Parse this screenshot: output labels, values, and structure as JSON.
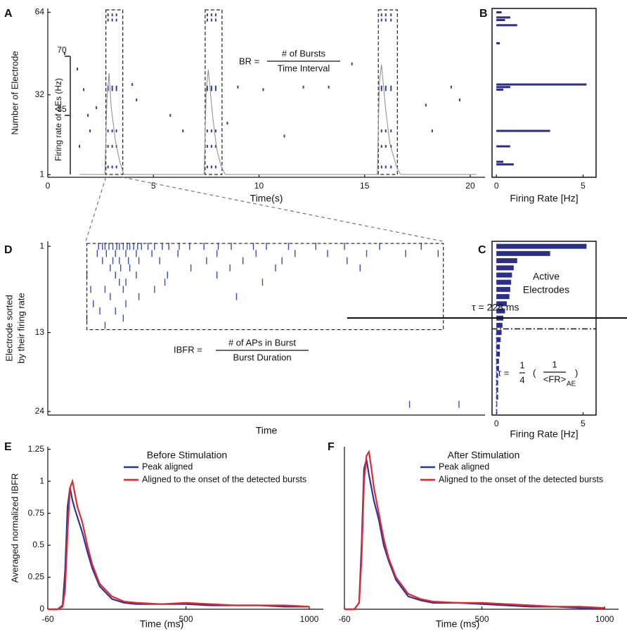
{
  "chart_data": [
    {
      "type": "raster",
      "panel": "A",
      "xlabel": "Time(s)",
      "ylabel": "Number of Electrode",
      "xlim": [
        0,
        20.7
      ],
      "ylim": [
        0,
        65.5
      ],
      "xticks": [
        0,
        5,
        10,
        15,
        20
      ],
      "yticks": [
        1,
        32,
        64
      ],
      "color": "#2e3f9e",
      "x": [
        2.85,
        2.85,
        2.85,
        2.85,
        2.85,
        2.85,
        2.85,
        3.05,
        3.05,
        3.05,
        3.05,
        3.05,
        3.05,
        3.05,
        3.25,
        3.25,
        3.25,
        3.25,
        3.25,
        3.25,
        3.25,
        7.55,
        7.55,
        7.55,
        7.55,
        7.55,
        7.55,
        7.55,
        7.75,
        7.75,
        7.75,
        7.75,
        7.75,
        7.75,
        7.75,
        7.95,
        7.95,
        7.95,
        7.95,
        7.95,
        7.95,
        7.95,
        15.8,
        15.8,
        15.8,
        15.8,
        15.8,
        15.8,
        15.8,
        16,
        16,
        16,
        16,
        16,
        16,
        16,
        16.25,
        16.25,
        16.25,
        16.25,
        16.25,
        16.25,
        16.25,
        1.7,
        2.0,
        2.3,
        1.9,
        1.4,
        4.0,
        4.2,
        6.4,
        9.0,
        10.2,
        12.1,
        13.3,
        11.2,
        14.4,
        19.1,
        19.5,
        18.2,
        17.9,
        5.8,
        8.5,
        0.8,
        1.5
      ],
      "y": [
        63,
        61,
        35,
        34,
        18,
        12,
        4,
        63,
        61,
        35,
        34,
        18,
        12,
        4,
        63,
        61,
        35,
        34,
        18,
        12,
        4,
        63,
        61,
        35,
        34,
        18,
        12,
        4,
        63,
        61,
        35,
        34,
        18,
        12,
        4,
        63,
        61,
        35,
        34,
        18,
        12,
        4,
        63,
        61,
        35,
        34,
        18,
        12,
        4,
        63,
        61,
        35,
        34,
        18,
        12,
        4,
        63,
        61,
        35,
        34,
        18,
        12,
        4,
        34,
        18,
        27,
        24,
        42,
        36,
        30,
        18,
        35,
        34,
        35,
        35,
        16,
        44,
        35,
        30,
        18,
        28,
        24,
        21,
        48,
        12
      ],
      "burst_windows": [
        [
          2.75,
          3.55
        ],
        [
          7.45,
          8.25
        ],
        [
          15.65,
          16.55
        ]
      ],
      "inset": {
        "ylabel": "Firing rate of AEs (Hz)",
        "ylim": [
          0,
          70
        ],
        "yticks": [
          35,
          70
        ],
        "color": "#8a8a8a",
        "x": [
          1.5,
          2.7,
          2.8,
          2.9,
          3.0,
          3.2,
          3.4,
          3.6,
          7.4,
          7.5,
          7.6,
          7.8,
          8.0,
          8.2,
          8.4,
          15.6,
          15.7,
          15.8,
          16.0,
          16.2,
          16.5,
          16.7,
          20.3
        ],
        "y": [
          0,
          0,
          45,
          60,
          40,
          20,
          8,
          0,
          0,
          50,
          62,
          35,
          15,
          5,
          0,
          0,
          55,
          65,
          38,
          18,
          5,
          0,
          0
        ]
      },
      "formula": {
        "lhs": "BR =",
        "numerator": "# of Bursts",
        "denominator": "Time Interval"
      }
    },
    {
      "type": "barh",
      "panel": "B",
      "xlabel": "Firing Rate [Hz]",
      "xlim": [
        -0.25,
        5.75
      ],
      "ylim": [
        0,
        65.5
      ],
      "xticks": [
        0,
        5
      ],
      "color": "#2b2f8a",
      "electrodes": [
        64,
        62,
        61,
        59,
        52,
        36,
        35,
        34,
        18,
        12,
        6,
        5
      ],
      "values": [
        0.3,
        0.8,
        0.5,
        1.2,
        0.2,
        5.2,
        0.8,
        0.4,
        3.1,
        0.8,
        0.4,
        1.0
      ]
    },
    {
      "type": "barh",
      "panel": "C",
      "xlabel": "Firing Rate [Hz]",
      "xlim": [
        -0.25,
        5.75
      ],
      "ylim": [
        24.5,
        0.3
      ],
      "xticks": [
        0,
        5
      ],
      "color": "#2b2f8a",
      "electrodes": [
        1,
        2,
        3,
        4,
        5,
        6,
        7,
        8,
        9,
        10,
        11,
        12,
        13,
        14,
        15,
        16,
        17,
        18,
        19,
        20,
        21,
        22,
        23,
        24
      ],
      "values": [
        5.2,
        3.1,
        1.2,
        1.0,
        0.9,
        0.85,
        0.8,
        0.75,
        0.6,
        0.5,
        0.4,
        0.35,
        0.3,
        0.25,
        0.2,
        0.2,
        0.15,
        0.15,
        0.1,
        0.1,
        0.1,
        0.1,
        0.05,
        0.05
      ],
      "threshold": 13,
      "annotation": [
        "Active",
        "Electrodes"
      ],
      "formula": {
        "lhs": "τ =",
        "num1": "1",
        "den1": "4",
        "open": "(",
        "num2": "1",
        "den2": "<FR>",
        "sub": "AE",
        "close": ")"
      }
    },
    {
      "type": "raster",
      "panel": "D",
      "xlabel": "Time",
      "ylabel": [
        "Electrode sorted",
        "by their firing rate"
      ],
      "xlim": [
        0,
        336
      ],
      "ylim": [
        24.5,
        0.3
      ],
      "yticks": [
        1,
        13,
        24
      ],
      "color": "#3a4cc0",
      "x": [
        39,
        42,
        44,
        47,
        50,
        53,
        55,
        58,
        61,
        63,
        66,
        69,
        72,
        77,
        82,
        88,
        93,
        101,
        109,
        120,
        131,
        141,
        158,
        168,
        185,
        206,
        228,
        255,
        287,
        38,
        45,
        52,
        60,
        68,
        80,
        100,
        130,
        160,
        190,
        215,
        245,
        275,
        300,
        42,
        50,
        55,
        62,
        70,
        86,
        122,
        150,
        180,
        230,
        48,
        56,
        63,
        110,
        140,
        175,
        240,
        30,
        52,
        68,
        92,
        130,
        55,
        60,
        90,
        165,
        33,
        44,
        58,
        82,
        48,
        70,
        145,
        35,
        60,
        40,
        52,
        30,
        58,
        44,
        278,
        316
      ],
      "y": [
        1,
        1,
        1,
        1,
        1,
        1,
        1,
        1,
        1,
        1,
        1,
        1,
        1,
        1,
        1,
        1,
        1,
        1,
        1,
        1,
        1,
        1,
        1,
        1,
        1,
        1,
        1,
        1,
        1,
        2,
        2,
        2,
        2,
        2,
        2,
        2,
        2,
        2,
        2,
        2,
        2,
        2,
        2,
        3,
        3,
        3,
        3,
        3,
        3,
        3,
        3,
        3,
        3,
        4,
        4,
        4,
        4,
        4,
        4,
        4,
        5,
        5,
        5,
        5,
        5,
        6,
        6,
        6,
        6,
        7,
        7,
        7,
        7,
        8,
        8,
        8,
        9,
        9,
        10,
        10,
        11,
        11,
        12,
        23,
        23
      ],
      "window": {
        "x": [
          30,
          304
        ],
        "y": [
          0.6,
          12.6
        ]
      },
      "scale_bar": {
        "label": "τ = 228 ms",
        "start": 230,
        "length": 228
      },
      "formula": {
        "lhs": "IBFR =",
        "numerator": "# of APs in Burst",
        "denominator": "Burst Duration"
      }
    },
    {
      "type": "line",
      "panel": "E",
      "title": "Before Stimulation",
      "xlabel": "Time (ms)",
      "ylabel": "Averaged normalized IBFR",
      "xlim": [
        -60,
        1057
      ],
      "ylim": [
        0,
        1.27
      ],
      "xticks": [
        -60,
        500,
        1000
      ],
      "yticks": [
        0,
        0.25,
        0.5,
        0.75,
        1,
        1.25
      ],
      "x": [
        -60,
        -20,
        0,
        10,
        20,
        30,
        40,
        50,
        60,
        80,
        100,
        120,
        150,
        200,
        250,
        300,
        400,
        500,
        600,
        700,
        800,
        900,
        1000
      ],
      "series": [
        {
          "name": "Peak aligned",
          "color": "#2b35a0",
          "values": [
            0,
            0,
            0.03,
            0.3,
            0.8,
            0.95,
            0.85,
            0.78,
            0.72,
            0.6,
            0.45,
            0.32,
            0.18,
            0.08,
            0.05,
            0.04,
            0.04,
            0.04,
            0.03,
            0.03,
            0.03,
            0.02,
            0.02
          ]
        },
        {
          "name": "Aligned to the onset of the detected bursts",
          "color": "#e8262b",
          "values": [
            0,
            0,
            0.02,
            0.15,
            0.6,
            0.95,
            1.0,
            0.9,
            0.8,
            0.68,
            0.5,
            0.35,
            0.2,
            0.1,
            0.06,
            0.05,
            0.04,
            0.05,
            0.04,
            0.03,
            0.03,
            0.03,
            0.02
          ]
        }
      ]
    },
    {
      "type": "line",
      "panel": "F",
      "title": "After Stimulation",
      "xlabel": "Time (ms)",
      "xlim": [
        -60,
        1057
      ],
      "ylim": [
        0,
        1.27
      ],
      "xticks": [
        -60,
        500,
        1000
      ],
      "x": [
        -60,
        -20,
        0,
        10,
        20,
        30,
        40,
        50,
        60,
        80,
        100,
        120,
        150,
        200,
        250,
        300,
        400,
        500,
        600,
        700,
        800,
        900,
        1000
      ],
      "series": [
        {
          "name": "Peak aligned",
          "color": "#2b35a0",
          "values": [
            0,
            0,
            0.05,
            0.5,
            1.1,
            1.17,
            1.05,
            0.95,
            0.85,
            0.7,
            0.5,
            0.38,
            0.23,
            0.1,
            0.07,
            0.05,
            0.05,
            0.04,
            0.03,
            0.02,
            0.02,
            0.01,
            0.01
          ]
        },
        {
          "name": "Aligned to the onset of the detected bursts",
          "color": "#e8262b",
          "values": [
            0,
            0,
            0.05,
            0.4,
            1.0,
            1.2,
            1.23,
            1.1,
            0.95,
            0.75,
            0.55,
            0.4,
            0.25,
            0.12,
            0.08,
            0.06,
            0.05,
            0.05,
            0.04,
            0.03,
            0.02,
            0.02,
            0.01
          ]
        }
      ]
    }
  ]
}
